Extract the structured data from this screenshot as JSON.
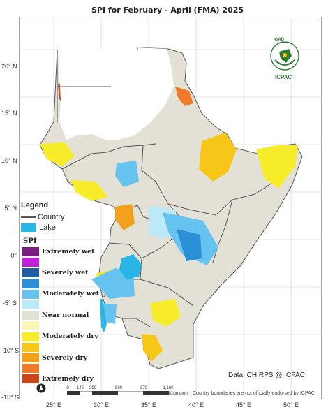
{
  "title": "SPI for February - April (FMA) 2025",
  "axes": {
    "lat_ticks": [
      "20° N",
      "15° N",
      "10° N",
      "5° N",
      "0°",
      "-5° S",
      "-10° S",
      "-15° S"
    ],
    "lon_ticks": [
      "25° E",
      "30° E",
      "35° E",
      "40° E",
      "45° E",
      "50° E"
    ]
  },
  "legend": {
    "title": "Legend",
    "country_label": "Country",
    "lake_label": "Lake",
    "spi_title": "SPI",
    "classes": [
      {
        "label": "Extremely wet",
        "color": "#7b1f7f"
      },
      {
        "label": "",
        "color": "#c020d8"
      },
      {
        "label": "Severely wet",
        "color": "#1f5fa0"
      },
      {
        "label": "",
        "color": "#2b8fd6"
      },
      {
        "label": "Moderately wet",
        "color": "#66c2ee"
      },
      {
        "label": "",
        "color": "#bde8f8"
      },
      {
        "label": "Near normal",
        "color": "#e3e1d6"
      },
      {
        "label": "",
        "color": "#fbf6b6"
      },
      {
        "label": "Moderately dry",
        "color": "#f7ec2a"
      },
      {
        "label": "",
        "color": "#f6c718"
      },
      {
        "label": "Severely dry",
        "color": "#f2a11c"
      },
      {
        "label": "",
        "color": "#ef7b2a"
      },
      {
        "label": "Extremely dry",
        "color": "#c7471b"
      }
    ]
  },
  "scale_bar": {
    "ticks": [
      "0",
      "145",
      "290",
      "580",
      "870",
      "1,160"
    ],
    "unit": "Kilometers"
  },
  "credit": "Data: CHIRPS @ ICPAC",
  "disclaimer": "Country boundaries are not officially endorsed by ICPAC",
  "logo": {
    "top_text": "IGAD",
    "bottom_text": "ICPAC"
  },
  "colors": {
    "land": "#e3e1d6",
    "dry_light": "#fbf6b6",
    "dry_mod": "#f7ec2a",
    "dry_sev": "#f2a11c",
    "dry_ext": "#c7471b",
    "wet_light": "#bde8f8",
    "wet_mod": "#66c2ee",
    "wet_sev": "#1f5fa0",
    "lake": "#29b6e6",
    "border": "#555555"
  }
}
